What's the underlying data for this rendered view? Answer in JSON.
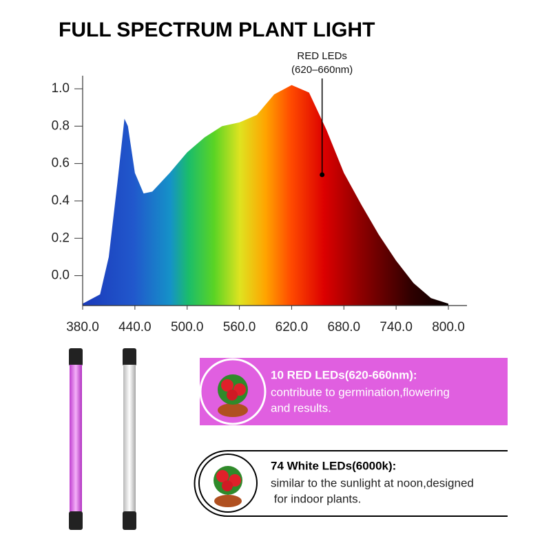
{
  "chart_data": {
    "type": "area",
    "title": "FULL SPECTRUM PLANT LIGHT",
    "x": [
      380,
      400,
      410,
      420,
      428,
      432,
      440,
      450,
      460,
      480,
      500,
      520,
      540,
      560,
      580,
      600,
      620,
      640,
      660,
      680,
      700,
      720,
      740,
      760,
      780,
      800
    ],
    "values": [
      -0.15,
      -0.1,
      0.1,
      0.5,
      0.84,
      0.8,
      0.55,
      0.44,
      0.45,
      0.55,
      0.66,
      0.74,
      0.8,
      0.82,
      0.86,
      0.97,
      1.02,
      0.98,
      0.78,
      0.55,
      0.38,
      0.22,
      0.08,
      -0.04,
      -0.12,
      -0.15
    ],
    "xlim": [
      380,
      800
    ],
    "ylim": [
      -0.16,
      1.07
    ],
    "xticks": [
      {
        "value": 380,
        "label": "380.0"
      },
      {
        "value": 440,
        "label": "440.0"
      },
      {
        "value": 500,
        "label": "500.0"
      },
      {
        "value": 560,
        "label": "560.0"
      },
      {
        "value": 620,
        "label": "620.0"
      },
      {
        "value": 680,
        "label": "680.0"
      },
      {
        "value": 740,
        "label": "740.0"
      },
      {
        "value": 800,
        "label": "800.0"
      }
    ],
    "yticks": [
      {
        "value": 0,
        "label": "0.0"
      },
      {
        "value": 0.2,
        "label": "0.2"
      },
      {
        "value": 0.4,
        "label": "0.4"
      },
      {
        "value": 0.6,
        "label": "0.6"
      },
      {
        "value": 0.8,
        "label": "0.8"
      },
      {
        "value": 1,
        "label": "1.0"
      }
    ],
    "annotation": {
      "text": [
        "RED LEDs",
        "(620–660nm)"
      ],
      "x": 655,
      "y": 0.54
    }
  },
  "panels": [
    {
      "title": "10 RED LEDs(620-660nm):",
      "lines": [
        "contribute to germination,flowering",
        "and results."
      ]
    },
    {
      "title": "74 White LEDs(6000k):",
      "lines": [
        "similar to the sunlight at noon,designed",
        " for indoor plants."
      ]
    }
  ]
}
